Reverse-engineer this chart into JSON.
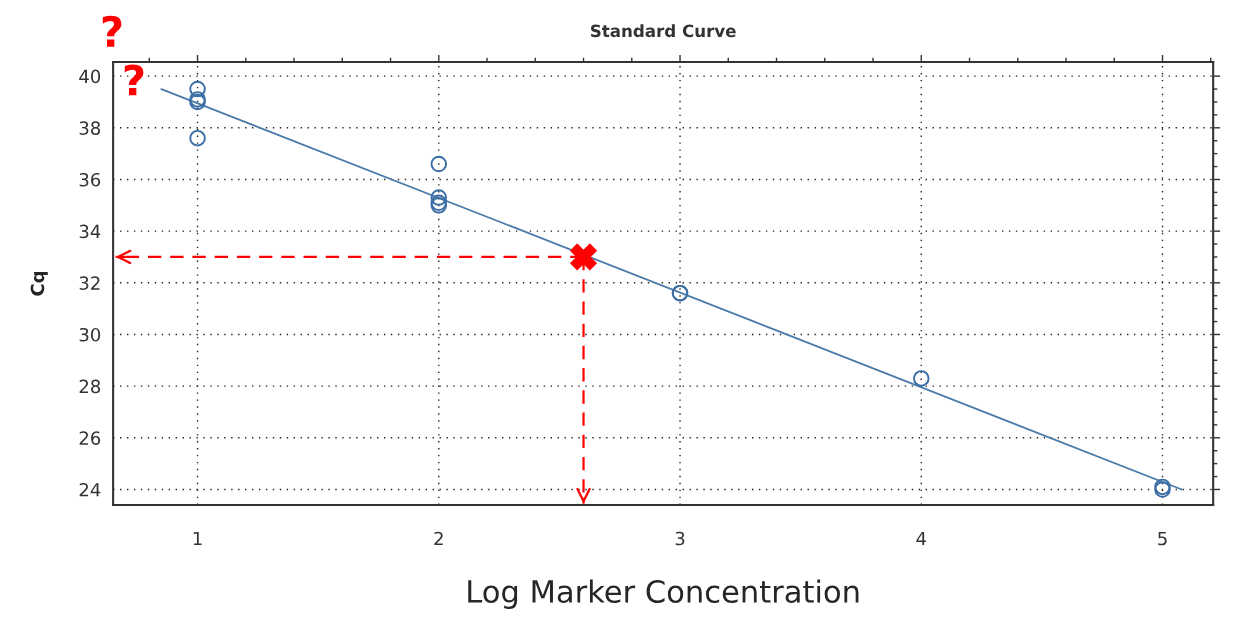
{
  "chart_data": {
    "type": "scatter",
    "title": "Standard Curve",
    "xlabel": "Log Marker Concentration",
    "ylabel": "Cq",
    "xlim": [
      0.65,
      5.21
    ],
    "ylim": [
      23.4,
      40.55
    ],
    "xticks": [
      {
        "value": 0.8,
        "label": null
      },
      1,
      {
        "value": 1.2,
        "label": null
      },
      {
        "value": 1.4,
        "label": null
      },
      {
        "value": 1.6,
        "label": null
      },
      {
        "value": 1.8,
        "label": null
      },
      2,
      {
        "value": 2.2,
        "label": null
      },
      {
        "value": 2.4,
        "label": null
      },
      {
        "value": 2.6,
        "label": null
      },
      {
        "value": 2.8,
        "label": null
      },
      3,
      {
        "value": 3.2,
        "label": null
      },
      {
        "value": 3.4,
        "label": null
      },
      {
        "value": 3.6,
        "label": null
      },
      {
        "value": 3.8,
        "label": null
      },
      4,
      {
        "value": 4.2,
        "label": null
      },
      {
        "value": 4.4,
        "label": null
      },
      {
        "value": 4.6,
        "label": null
      },
      {
        "value": 4.8,
        "label": null
      },
      5,
      {
        "value": 5.2,
        "label": null
      }
    ],
    "yticks": [
      24,
      {
        "value": 24.5,
        "label": null
      },
      {
        "value": 25,
        "label": null
      },
      {
        "value": 25.5,
        "label": null
      },
      26,
      {
        "value": 26.5,
        "label": null
      },
      {
        "value": 27,
        "label": null
      },
      {
        "value": 27.5,
        "label": null
      },
      28,
      {
        "value": 28.5,
        "label": null
      },
      {
        "value": 29,
        "label": null
      },
      {
        "value": 29.5,
        "label": null
      },
      30,
      {
        "value": 30.5,
        "label": null
      },
      {
        "value": 31,
        "label": null
      },
      {
        "value": 31.5,
        "label": null
      },
      32,
      {
        "value": 32.5,
        "label": null
      },
      {
        "value": 33,
        "label": null
      },
      {
        "value": 33.5,
        "label": null
      },
      34,
      {
        "value": 34.5,
        "label": null
      },
      {
        "value": 35,
        "label": null
      },
      {
        "value": 35.5,
        "label": null
      },
      36,
      {
        "value": 36.5,
        "label": null
      },
      {
        "value": 37,
        "label": null
      },
      {
        "value": 37.5,
        "label": null
      },
      38,
      {
        "value": 38.5,
        "label": null
      },
      {
        "value": 39,
        "label": null
      },
      {
        "value": 39.5,
        "label": null
      },
      40
    ],
    "grid": true,
    "series": [
      {
        "marker": "circle",
        "color": "#3b6ea5",
        "x": [
          1,
          1,
          1,
          1,
          2,
          2,
          2,
          2,
          3,
          3,
          4,
          5,
          5
        ],
        "values": [
          39.5,
          39.1,
          39.0,
          37.6,
          36.6,
          35.3,
          35.1,
          35.0,
          31.6,
          31.6,
          28.3,
          24.1,
          24.0
        ]
      },
      {
        "type": "line",
        "marker": "none",
        "line_style": "solid",
        "color": "#4a7bab",
        "x": [
          0.85,
          5.08
        ],
        "values": [
          39.5,
          24.0
        ]
      },
      {
        "type": "line",
        "marker": "none",
        "line_style": "dashed",
        "color": "#ff0000",
        "x": [
          2.6,
          0.66
        ],
        "values": [
          33.0,
          33.0
        ]
      },
      {
        "type": "line",
        "marker": "none",
        "line_style": "dashed",
        "color": "#ff0000",
        "x": [
          2.6,
          2.6
        ],
        "values": [
          33.0,
          23.45
        ]
      },
      {
        "marker": "cross",
        "color": "#ff0000",
        "x": [
          2.6
        ],
        "values": [
          33.0
        ]
      }
    ],
    "annotations": [
      "?",
      "?"
    ]
  }
}
